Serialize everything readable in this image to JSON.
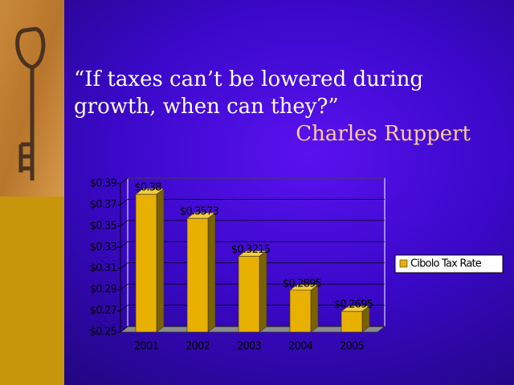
{
  "quote": "“If taxes can’t be lowered during growth, when can they?”",
  "author": "Charles Ruppert",
  "chart_data": {
    "type": "bar",
    "categories": [
      "2001",
      "2002",
      "2003",
      "2004",
      "2005"
    ],
    "series": [
      {
        "name": "Cibolo Tax Rate",
        "color": "#e8b000",
        "values": [
          0.38,
          0.3573,
          0.3215,
          0.2895,
          0.2695
        ],
        "value_labels": [
          "$0.38",
          "$0.3573",
          "$0.3215",
          "$0.2895",
          "$0.2695"
        ]
      }
    ],
    "ylim": [
      0.25,
      0.39
    ],
    "yticks": [
      {
        "value": 0.25,
        "label": "$0.25"
      },
      {
        "value": 0.27,
        "label": "$0.27"
      },
      {
        "value": 0.29,
        "label": "$0.29"
      },
      {
        "value": 0.31,
        "label": "$0.31"
      },
      {
        "value": 0.33,
        "label": "$0.33"
      },
      {
        "value": 0.35,
        "label": "$0.35"
      },
      {
        "value": 0.37,
        "label": "$0.37"
      },
      {
        "value": 0.39,
        "label": "$0.39"
      }
    ],
    "grid": true,
    "legend": "right"
  }
}
